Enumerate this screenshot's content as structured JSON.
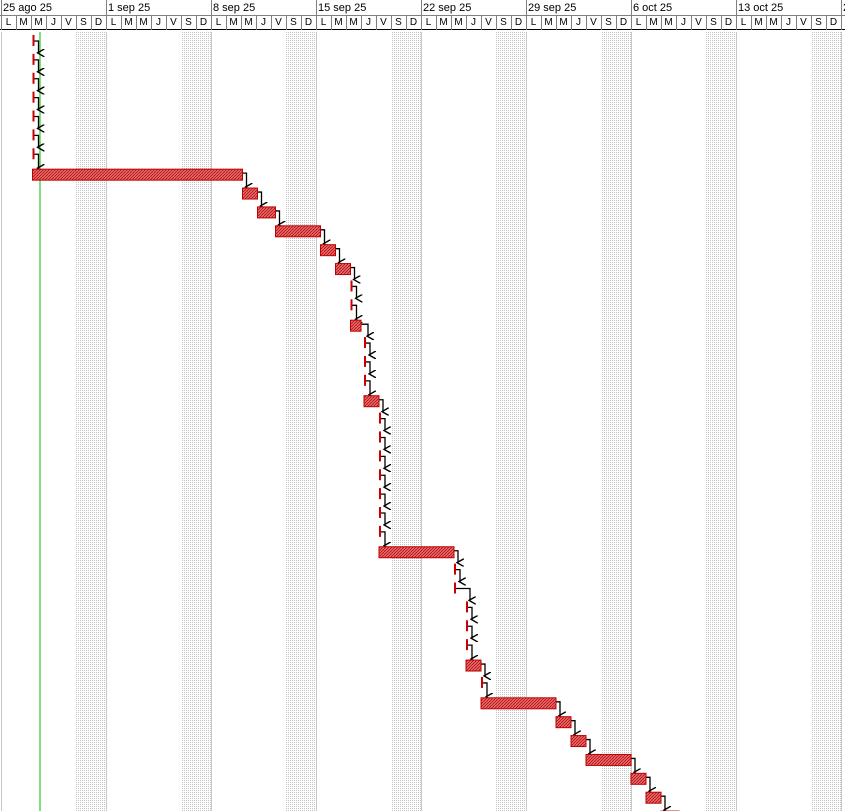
{
  "timescale": {
    "weeks": [
      "25 ago 25",
      "1 sep 25",
      "8 sep 25",
      "15 sep 25",
      "22 sep 25",
      "29 sep 25",
      "6 oct 25",
      "13 oct 25",
      "2"
    ],
    "day_letters": [
      "L",
      "M",
      "M",
      "J",
      "V",
      "S",
      "D"
    ]
  },
  "colors": {
    "bar_fill": "#e26a6a",
    "bar_border": "#c00000",
    "milestone": "#cc0000",
    "arrow": "#000000",
    "grid": "#c8c8c8",
    "weekend_shade": "#ececec",
    "today_line": "#00c000",
    "header_border": "#808080"
  },
  "tasks": [
    {
      "type": "milestone",
      "start_day": 2.1
    },
    {
      "type": "milestone",
      "start_day": 2.1
    },
    {
      "type": "milestone",
      "start_day": 2.1
    },
    {
      "type": "milestone",
      "start_day": 2.1
    },
    {
      "type": "milestone",
      "start_day": 2.1
    },
    {
      "type": "milestone",
      "start_day": 2.1
    },
    {
      "type": "milestone",
      "start_day": 2.1
    },
    {
      "type": "bar",
      "start_day": 2.1,
      "end_day": 16.1
    },
    {
      "type": "bar",
      "start_day": 16.1,
      "end_day": 17.1
    },
    {
      "type": "bar",
      "start_day": 17.1,
      "end_day": 18.3
    },
    {
      "type": "bar",
      "start_day": 18.3,
      "end_day": 21.3
    },
    {
      "type": "bar",
      "start_day": 21.3,
      "end_day": 22.3
    },
    {
      "type": "bar",
      "start_day": 22.3,
      "end_day": 23.3
    },
    {
      "type": "milestone",
      "start_day": 23.3
    },
    {
      "type": "milestone",
      "start_day": 23.3
    },
    {
      "type": "bar",
      "start_day": 23.3,
      "end_day": 24
    },
    {
      "type": "milestone",
      "start_day": 24.2
    },
    {
      "type": "milestone",
      "start_day": 24.2
    },
    {
      "type": "milestone",
      "start_day": 24.2
    },
    {
      "type": "bar",
      "start_day": 24.2,
      "end_day": 25.2
    },
    {
      "type": "milestone",
      "start_day": 25.2
    },
    {
      "type": "milestone",
      "start_day": 25.2
    },
    {
      "type": "milestone",
      "start_day": 25.2
    },
    {
      "type": "milestone",
      "start_day": 25.2
    },
    {
      "type": "milestone",
      "start_day": 25.2
    },
    {
      "type": "milestone",
      "start_day": 25.2
    },
    {
      "type": "milestone",
      "start_day": 25.2
    },
    {
      "type": "bar",
      "start_day": 25.2,
      "end_day": 30.2
    },
    {
      "type": "milestone",
      "start_day": 30.2
    },
    {
      "type": "milestone",
      "start_day": 30.2
    },
    {
      "type": "milestone",
      "start_day": 31
    },
    {
      "type": "milestone",
      "start_day": 31
    },
    {
      "type": "milestone",
      "start_day": 31
    },
    {
      "type": "bar",
      "start_day": 31,
      "end_day": 32
    },
    {
      "type": "milestone",
      "start_day": 32
    },
    {
      "type": "bar",
      "start_day": 32,
      "end_day": 37
    },
    {
      "type": "bar",
      "start_day": 37,
      "end_day": 38
    },
    {
      "type": "bar",
      "start_day": 38,
      "end_day": 39
    },
    {
      "type": "bar",
      "start_day": 39,
      "end_day": 42
    },
    {
      "type": "bar",
      "start_day": 42,
      "end_day": 43
    },
    {
      "type": "bar",
      "start_day": 43,
      "end_day": 44
    },
    {
      "type": "bar",
      "start_day": 44,
      "end_day": 45.2
    }
  ]
}
